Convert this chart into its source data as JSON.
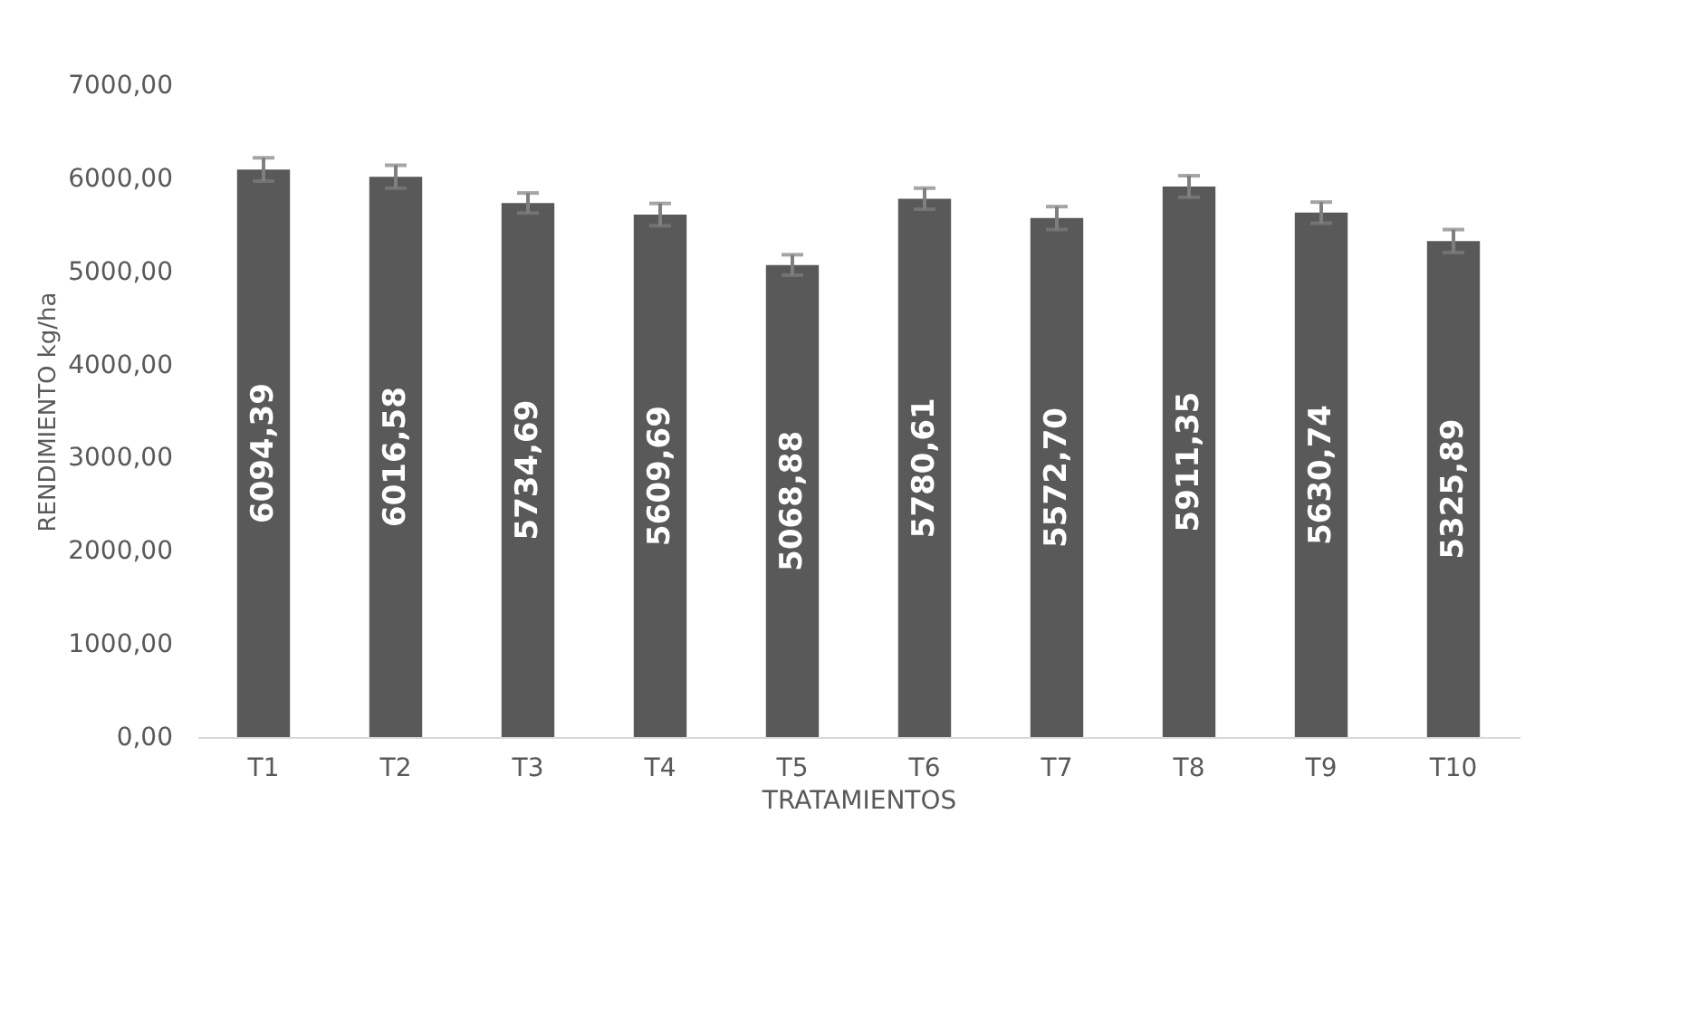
{
  "chart_data": {
    "type": "bar",
    "xlabel": "TRATAMIENTOS",
    "ylabel": "RENDIMIENTO kg/ha",
    "categories": [
      "T1",
      "T2",
      "T3",
      "T4",
      "T5",
      "T6",
      "T7",
      "T8",
      "T9",
      "T10"
    ],
    "values": [
      6094.39,
      6016.58,
      5734.69,
      5609.69,
      5068.88,
      5780.61,
      5572.7,
      5911.35,
      5630.74,
      5325.89
    ],
    "value_labels": [
      "6094,39",
      "6016,58",
      "5734,69",
      "5609,69",
      "5068,88",
      "5780,61",
      "5572,70",
      "5911,35",
      "5630,74",
      "5325,89"
    ],
    "errors": [
      125,
      123,
      107,
      120,
      110,
      113,
      123,
      116,
      113,
      123
    ],
    "color": "#595959",
    "ylim": [
      0,
      7000
    ],
    "yticks": [
      {
        "value": 0,
        "label": "0,00"
      },
      {
        "value": 1000,
        "label": "1000,00"
      },
      {
        "value": 2000,
        "label": "2000,00"
      },
      {
        "value": 3000,
        "label": "3000,00"
      },
      {
        "value": 4000,
        "label": "4000,00"
      },
      {
        "value": 5000,
        "label": "5000,00"
      },
      {
        "value": 6000,
        "label": "6000,00"
      },
      {
        "value": 7000,
        "label": "7000,00"
      }
    ],
    "grid": false
  }
}
